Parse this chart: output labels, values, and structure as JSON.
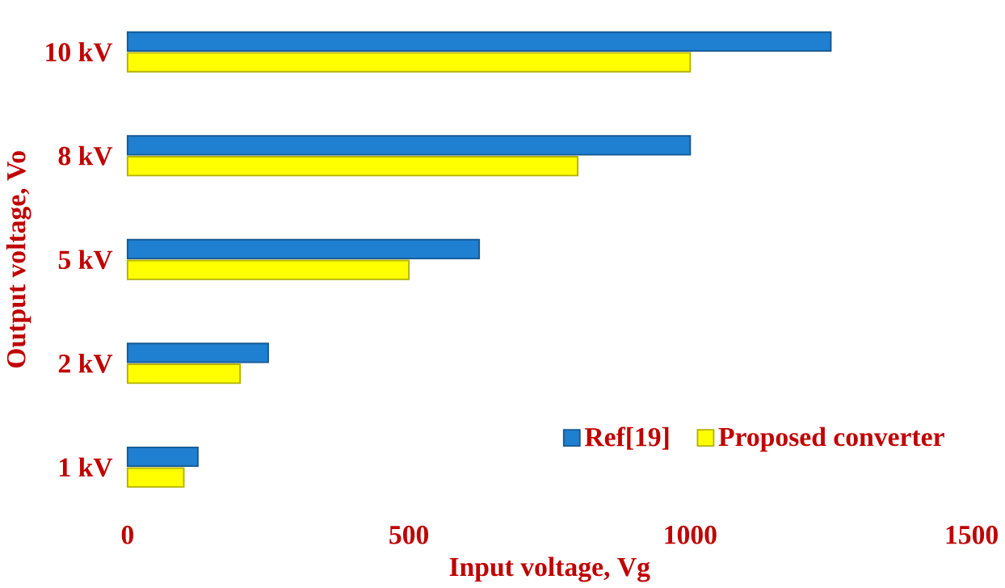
{
  "chart_data": {
    "type": "bar",
    "orientation": "horizontal",
    "xlabel": "Input voltage, Vg",
    "ylabel": "Output voltage, Vo",
    "categories": [
      "10 kV",
      "8 kV",
      "5 kV",
      "2 kV",
      "1 kV"
    ],
    "series": [
      {
        "name": "Ref[19]",
        "color": "#1f7fd0",
        "values": [
          1250,
          1000,
          625,
          250,
          125
        ]
      },
      {
        "name": "Proposed converter",
        "color": "#ffff00",
        "values": [
          1000,
          800,
          500,
          200,
          100
        ]
      }
    ],
    "xlim": [
      0,
      1500
    ],
    "xticks": [
      0,
      500,
      1000,
      1500
    ],
    "grid": false,
    "legend": "bottom right"
  }
}
